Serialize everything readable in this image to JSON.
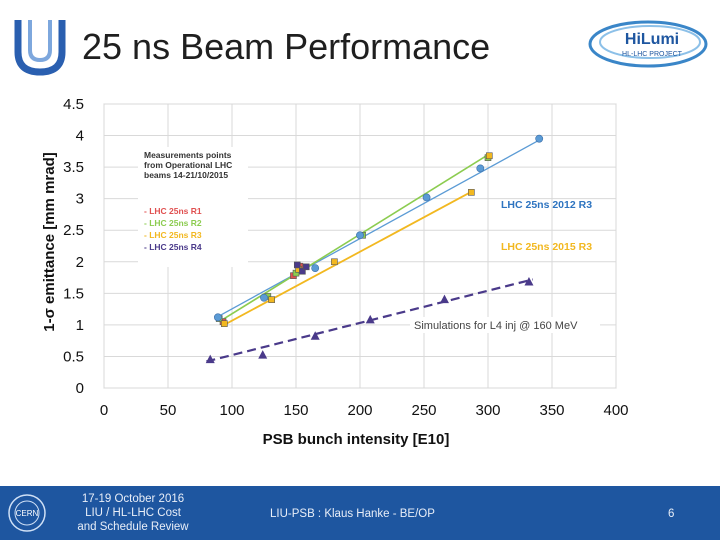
{
  "header": {
    "title": "25 ns Beam Performance"
  },
  "logos": {
    "left": "liu-logo",
    "right_line1": "HiLumi",
    "right_line2": "HL-LHC PROJECT",
    "footer": "CERN"
  },
  "footer": {
    "date_text": "17-19 October 2016\nLIU / HL-LHC  Cost\nand Schedule Review",
    "author": "LIU-PSB : Klaus Hanke - BE/OP",
    "page": "6"
  },
  "colors": {
    "footer_bg": "#1e56a0",
    "r1": "#e05050",
    "r2": "#8ccc50",
    "r3": "#f2b820",
    "r4": "#4a3a8a",
    "fit2012": "#5b9bd5"
  },
  "chart_data": {
    "type": "scatter",
    "xlabel": "PSB bunch intensity [E10]",
    "ylabel": "1-σ emittance [mm mrad]",
    "xlim": [
      0,
      400
    ],
    "ylim": [
      0,
      4.5
    ],
    "xticks": [
      "0",
      "50",
      "100",
      "150",
      "200",
      "250",
      "300",
      "350",
      "400"
    ],
    "yticks": [
      "0",
      "0.5",
      "1",
      "1.5",
      "2",
      "2.5",
      "3",
      "3.5",
      "4",
      "4.5"
    ],
    "grid": true,
    "legend_box": {
      "title": "Measurements points from Operational LHC beams 14-21/10/2015",
      "entries": [
        "- LHC 25ns R1",
        "- LHC 25ns R2",
        "- LHC 25ns R3",
        "- LHC 25ns R4"
      ]
    },
    "annotations": {
      "fit_2012": "LHC 25ns 2012 R3",
      "fit_2015": "LHC 25ns 2015 R3",
      "simulation": "Simulations for L4 inj @ 160 MeV"
    },
    "series": [
      {
        "name": "LHC 25ns R1",
        "x": [
          93,
          148,
          153
        ],
        "y": [
          1.05,
          1.78,
          1.93
        ]
      },
      {
        "name": "LHC 25ns R2",
        "x": [
          90,
          128,
          150,
          202,
          300
        ],
        "y": [
          1.1,
          1.45,
          1.82,
          2.42,
          3.65
        ]
      },
      {
        "name": "LHC 25ns R3",
        "x": [
          94,
          131,
          152,
          180,
          287,
          301
        ],
        "y": [
          1.02,
          1.4,
          1.88,
          2.0,
          3.1,
          3.68
        ]
      },
      {
        "name": "LHC 25ns R4",
        "x": [
          151,
          155,
          158
        ],
        "y": [
          1.95,
          1.85,
          1.92
        ]
      },
      {
        "name": "LHC 25ns 2012 R3",
        "x": [
          89,
          125,
          165,
          200,
          252,
          294,
          340
        ],
        "y": [
          1.12,
          1.43,
          1.9,
          2.42,
          3.02,
          3.48,
          3.95
        ]
      },
      {
        "name": "Simulations for L4 inj @ 160 MeV",
        "x": [
          83,
          124,
          165,
          208,
          266,
          332
        ],
        "y": [
          0.45,
          0.52,
          0.82,
          1.08,
          1.4,
          1.68
        ]
      }
    ],
    "fit_lines": [
      {
        "name": "LHC 25ns 2012 R3",
        "x": [
          88,
          342
        ],
        "y": [
          1.12,
          3.95
        ]
      },
      {
        "name": "LHC 25ns R2 fit",
        "x": [
          90,
          302
        ],
        "y": [
          1.05,
          3.72
        ]
      },
      {
        "name": "LHC 25ns 2015 R3",
        "x": [
          92,
          288
        ],
        "y": [
          0.98,
          3.12
        ]
      },
      {
        "name": "Simulations for L4 inj @ 160 MeV",
        "x": [
          80,
          335
        ],
        "y": [
          0.42,
          1.72
        ]
      }
    ]
  }
}
